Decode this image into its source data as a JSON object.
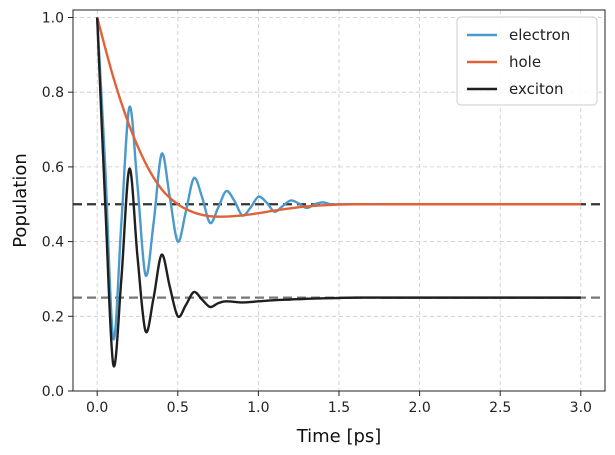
{
  "chart_data": {
    "type": "line",
    "xlabel": "Time [ps]",
    "ylabel": "Population",
    "xlim": [
      -0.15,
      3.15
    ],
    "ylim": [
      0.0,
      1.02
    ],
    "xticks": [
      "0.0",
      "0.5",
      "1.0",
      "1.5",
      "2.0",
      "2.5",
      "3.0"
    ],
    "yticks": [
      "0.0",
      "0.2",
      "0.4",
      "0.6",
      "0.8",
      "1.0"
    ],
    "grid": true,
    "legend_position": "top-right",
    "reference_lines": [
      {
        "y": 0.5,
        "color": "#333333",
        "style": "dashed"
      },
      {
        "y": 0.25,
        "color": "#777777",
        "style": "dashed"
      }
    ],
    "series": [
      {
        "name": "electron",
        "color": "#4c9ac9",
        "x": [
          0.0,
          0.05,
          0.1,
          0.15,
          0.2,
          0.25,
          0.3,
          0.35,
          0.4,
          0.45,
          0.5,
          0.55,
          0.6,
          0.65,
          0.7,
          0.75,
          0.8,
          0.85,
          0.9,
          0.95,
          1.0,
          1.05,
          1.1,
          1.15,
          1.2,
          1.25,
          1.3,
          1.35,
          1.4,
          1.45,
          1.5,
          1.6,
          1.8,
          2.0,
          2.5,
          3.0
        ],
        "y": [
          1.0,
          0.6,
          0.14,
          0.45,
          0.76,
          0.55,
          0.31,
          0.45,
          0.635,
          0.52,
          0.4,
          0.48,
          0.57,
          0.52,
          0.45,
          0.49,
          0.535,
          0.51,
          0.47,
          0.49,
          0.52,
          0.505,
          0.48,
          0.495,
          0.51,
          0.502,
          0.49,
          0.5,
          0.505,
          0.5,
          0.5,
          0.5,
          0.5,
          0.5,
          0.5,
          0.5
        ]
      },
      {
        "name": "hole",
        "color": "#e0623a",
        "x": [
          0.0,
          0.1,
          0.2,
          0.3,
          0.4,
          0.5,
          0.6,
          0.7,
          0.8,
          0.9,
          1.0,
          1.1,
          1.2,
          1.3,
          1.4,
          1.5,
          1.6,
          1.8,
          2.0,
          2.5,
          3.0
        ],
        "y": [
          1.0,
          0.84,
          0.71,
          0.61,
          0.54,
          0.5,
          0.478,
          0.468,
          0.467,
          0.47,
          0.476,
          0.483,
          0.489,
          0.494,
          0.497,
          0.499,
          0.5,
          0.5,
          0.5,
          0.5,
          0.5
        ]
      },
      {
        "name": "exciton",
        "color": "#1f1f1f",
        "x": [
          0.0,
          0.05,
          0.1,
          0.15,
          0.2,
          0.25,
          0.3,
          0.35,
          0.4,
          0.45,
          0.5,
          0.55,
          0.6,
          0.65,
          0.7,
          0.75,
          0.8,
          0.9,
          1.0,
          1.1,
          1.2,
          1.3,
          1.4,
          1.5,
          1.6,
          1.8,
          2.0,
          2.5,
          3.0
        ],
        "y": [
          1.0,
          0.5,
          0.07,
          0.3,
          0.595,
          0.36,
          0.16,
          0.25,
          0.365,
          0.28,
          0.2,
          0.23,
          0.265,
          0.245,
          0.225,
          0.235,
          0.24,
          0.237,
          0.24,
          0.243,
          0.245,
          0.247,
          0.248,
          0.249,
          0.25,
          0.25,
          0.25,
          0.25,
          0.25
        ]
      }
    ]
  }
}
